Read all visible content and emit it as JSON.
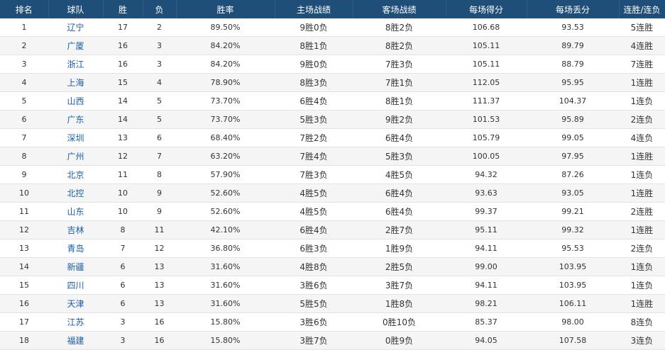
{
  "headers": [
    "排名",
    "球队",
    "胜",
    "负",
    "胜率",
    "主场战绩",
    "客场战绩",
    "每场得分",
    "每场丢分",
    "连胜/连负"
  ],
  "rows": [
    {
      "rank": "1",
      "team": "辽宁",
      "w": "17",
      "l": "2",
      "pct": "89.50%",
      "home": "9胜0负",
      "away": "8胜2负",
      "ppg": "106.68",
      "oppg": "93.53",
      "streak": "5连胜"
    },
    {
      "rank": "2",
      "team": "广厦",
      "w": "16",
      "l": "3",
      "pct": "84.20%",
      "home": "8胜1负",
      "away": "8胜2负",
      "ppg": "105.11",
      "oppg": "89.79",
      "streak": "4连胜"
    },
    {
      "rank": "3",
      "team": "浙江",
      "w": "16",
      "l": "3",
      "pct": "84.20%",
      "home": "9胜0负",
      "away": "7胜3负",
      "ppg": "105.11",
      "oppg": "88.79",
      "streak": "7连胜"
    },
    {
      "rank": "4",
      "team": "上海",
      "w": "15",
      "l": "4",
      "pct": "78.90%",
      "home": "8胜3负",
      "away": "7胜1负",
      "ppg": "112.05",
      "oppg": "95.95",
      "streak": "1连胜"
    },
    {
      "rank": "5",
      "team": "山西",
      "w": "14",
      "l": "5",
      "pct": "73.70%",
      "home": "6胜4负",
      "away": "8胜1负",
      "ppg": "111.37",
      "oppg": "104.37",
      "streak": "1连负"
    },
    {
      "rank": "6",
      "team": "广东",
      "w": "14",
      "l": "5",
      "pct": "73.70%",
      "home": "5胜3负",
      "away": "9胜2负",
      "ppg": "101.53",
      "oppg": "95.89",
      "streak": "2连负"
    },
    {
      "rank": "7",
      "team": "深圳",
      "w": "13",
      "l": "6",
      "pct": "68.40%",
      "home": "7胜2负",
      "away": "6胜4负",
      "ppg": "105.79",
      "oppg": "99.05",
      "streak": "4连负"
    },
    {
      "rank": "8",
      "team": "广州",
      "w": "12",
      "l": "7",
      "pct": "63.20%",
      "home": "7胜4负",
      "away": "5胜3负",
      "ppg": "100.05",
      "oppg": "97.95",
      "streak": "1连胜"
    },
    {
      "rank": "9",
      "team": "北京",
      "w": "11",
      "l": "8",
      "pct": "57.90%",
      "home": "7胜3负",
      "away": "4胜5负",
      "ppg": "94.32",
      "oppg": "87.26",
      "streak": "1连负"
    },
    {
      "rank": "10",
      "team": "北控",
      "w": "10",
      "l": "9",
      "pct": "52.60%",
      "home": "4胜5负",
      "away": "6胜4负",
      "ppg": "93.63",
      "oppg": "93.05",
      "streak": "1连胜"
    },
    {
      "rank": "11",
      "team": "山东",
      "w": "10",
      "l": "9",
      "pct": "52.60%",
      "home": "4胜5负",
      "away": "6胜4负",
      "ppg": "99.37",
      "oppg": "99.21",
      "streak": "2连胜"
    },
    {
      "rank": "12",
      "team": "吉林",
      "w": "8",
      "l": "11",
      "pct": "42.10%",
      "home": "6胜4负",
      "away": "2胜7负",
      "ppg": "95.11",
      "oppg": "99.32",
      "streak": "1连胜"
    },
    {
      "rank": "13",
      "team": "青岛",
      "w": "7",
      "l": "12",
      "pct": "36.80%",
      "home": "6胜3负",
      "away": "1胜9负",
      "ppg": "94.11",
      "oppg": "95.53",
      "streak": "2连负"
    },
    {
      "rank": "14",
      "team": "新疆",
      "w": "6",
      "l": "13",
      "pct": "31.60%",
      "home": "4胜8负",
      "away": "2胜5负",
      "ppg": "99.00",
      "oppg": "103.95",
      "streak": "1连负"
    },
    {
      "rank": "15",
      "team": "四川",
      "w": "6",
      "l": "13",
      "pct": "31.60%",
      "home": "3胜6负",
      "away": "3胜7负",
      "ppg": "94.11",
      "oppg": "103.95",
      "streak": "1连负"
    },
    {
      "rank": "16",
      "team": "天津",
      "w": "6",
      "l": "13",
      "pct": "31.60%",
      "home": "5胜5负",
      "away": "1胜8负",
      "ppg": "98.21",
      "oppg": "106.11",
      "streak": "1连胜"
    },
    {
      "rank": "17",
      "team": "江苏",
      "w": "3",
      "l": "16",
      "pct": "15.80%",
      "home": "3胜6负",
      "away": "0胜10负",
      "ppg": "85.37",
      "oppg": "98.00",
      "streak": "8连负"
    },
    {
      "rank": "18",
      "team": "福建",
      "w": "3",
      "l": "16",
      "pct": "15.80%",
      "home": "3胜7负",
      "away": "0胜9负",
      "ppg": "94.05",
      "oppg": "107.58",
      "streak": "3连负"
    }
  ]
}
